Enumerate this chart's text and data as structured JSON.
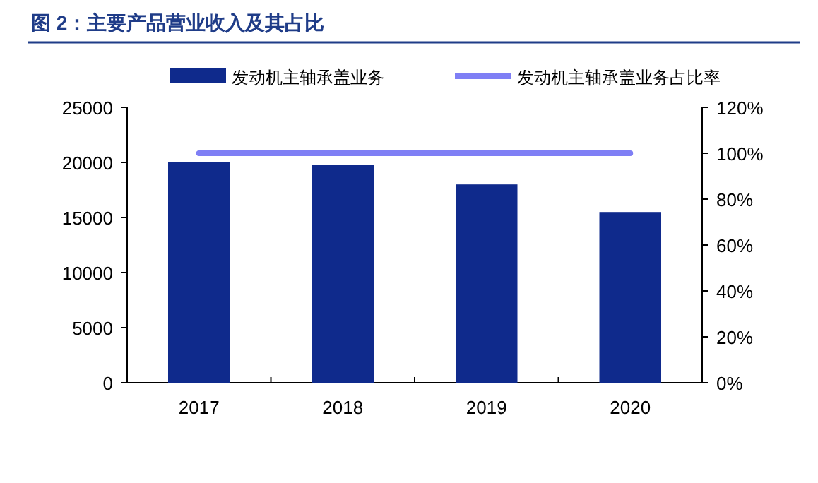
{
  "chart_data": {
    "type": "bar",
    "title": "图 2：主要产品营业收入及其占比",
    "categories": [
      "2017",
      "2018",
      "2019",
      "2020"
    ],
    "series": [
      {
        "name": "发动机主轴承盖业务",
        "color": "#0f2a8c",
        "values": [
          20000,
          19800,
          18000,
          15500
        ]
      },
      {
        "name": "发动机主轴承盖业务占比率",
        "type": "line",
        "axis": "y2",
        "color": "#7f7ff5",
        "values": [
          100,
          100,
          100,
          100
        ]
      }
    ],
    "ylim": [
      0,
      25000
    ],
    "yticks": [
      0,
      5000,
      10000,
      15000,
      20000,
      25000
    ],
    "y2lim": [
      0,
      120
    ],
    "y2ticks": [
      {
        "value": 0,
        "label": "0%"
      },
      {
        "value": 20,
        "label": "20%"
      },
      {
        "value": 40,
        "label": "40%"
      },
      {
        "value": 60,
        "label": "60%"
      },
      {
        "value": 80,
        "label": "80%"
      },
      {
        "value": 100,
        "label": "100%"
      },
      {
        "value": 120,
        "label": "120%"
      }
    ],
    "legend": "top",
    "grid": false
  }
}
